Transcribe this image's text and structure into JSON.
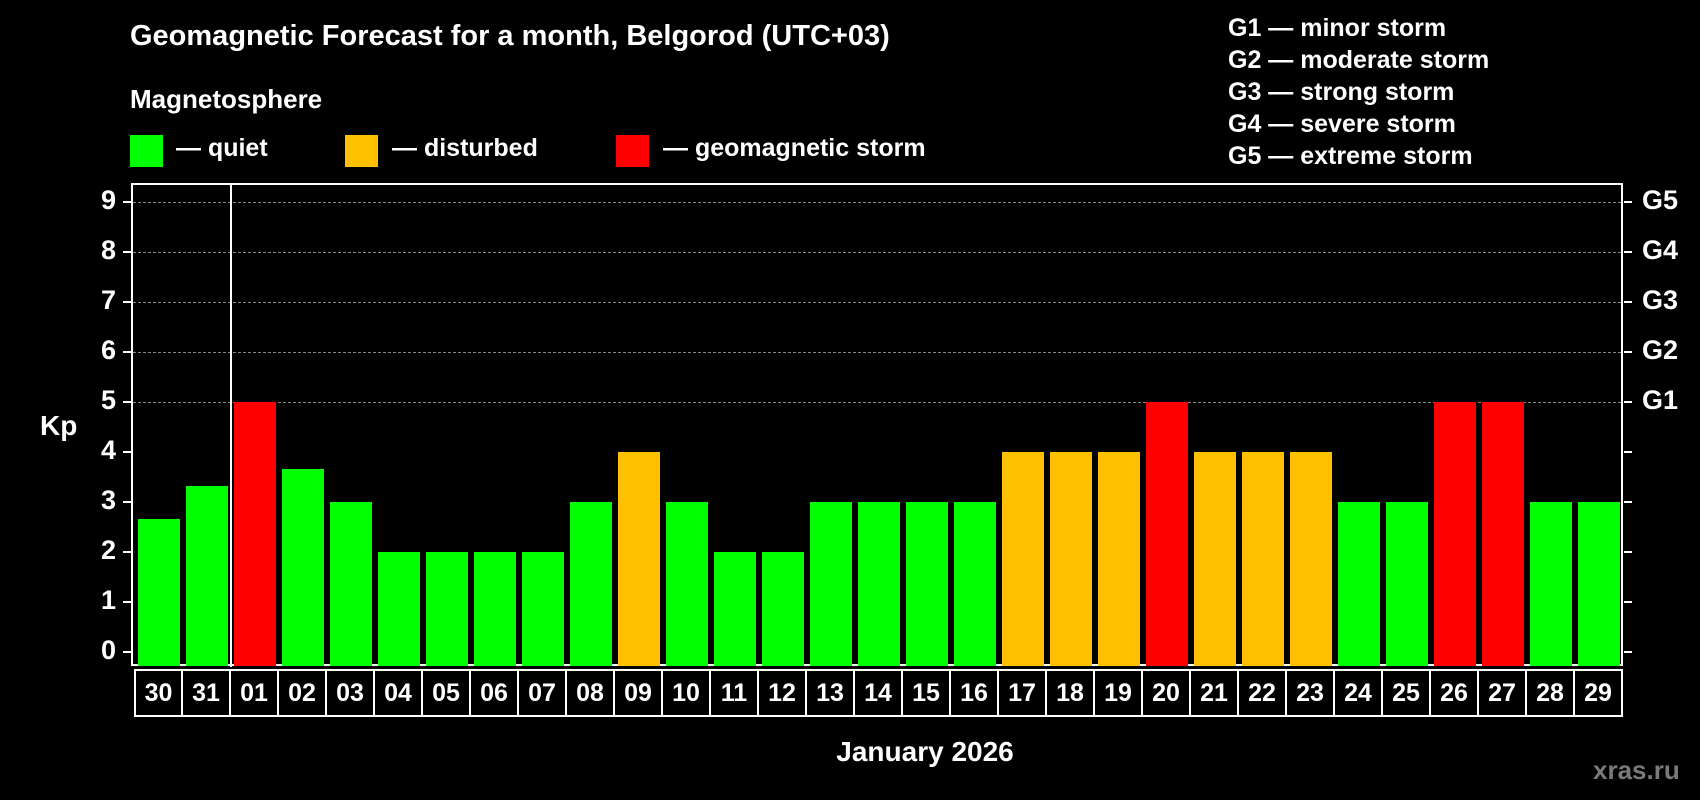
{
  "header": {
    "title": "Geomagnetic Forecast for a month, Belgorod (UTC+03)",
    "subtitle": "Magnetosphere"
  },
  "legend": {
    "items": [
      {
        "label": "— quiet",
        "color": "#00ff00"
      },
      {
        "label": "— disturbed",
        "color": "#ffc000"
      },
      {
        "label": "— geomagnetic storm",
        "color": "#ff0000"
      }
    ]
  },
  "storm_scale": [
    "G1 — minor storm",
    "G2 — moderate storm",
    "G3 — strong storm",
    "G4 — severe storm",
    "G5 — extreme storm"
  ],
  "watermark": "xras.ru",
  "chart_data": {
    "type": "bar",
    "title": "Geomagnetic Forecast for a month, Belgorod (UTC+03)",
    "xlabel": "January 2026",
    "ylabel": "Kp",
    "ylim": [
      0,
      9
    ],
    "yticks": [
      "0",
      "1",
      "2",
      "3",
      "4",
      "5",
      "6",
      "7",
      "8",
      "9"
    ],
    "right_axis_labels": [
      {
        "y": 5,
        "label": "G1"
      },
      {
        "y": 6,
        "label": "G2"
      },
      {
        "y": 7,
        "label": "G3"
      },
      {
        "y": 8,
        "label": "G4"
      },
      {
        "y": 9,
        "label": "G5"
      }
    ],
    "grid": "dashed horizontal at 5,6,7,8,9",
    "categories": [
      "30",
      "31",
      "01",
      "02",
      "03",
      "04",
      "05",
      "06",
      "07",
      "08",
      "09",
      "10",
      "11",
      "12",
      "13",
      "14",
      "15",
      "16",
      "17",
      "18",
      "19",
      "20",
      "21",
      "22",
      "23",
      "24",
      "25",
      "26",
      "27",
      "28",
      "29"
    ],
    "values": [
      2.67,
      3.33,
      5,
      3.67,
      3,
      2,
      2,
      2,
      2,
      3,
      4,
      3,
      2,
      2,
      3,
      3,
      3,
      3,
      4,
      4,
      4,
      5,
      4,
      4,
      4,
      3,
      3,
      5,
      5,
      3,
      3
    ],
    "status": [
      "quiet",
      "quiet",
      "storm",
      "quiet",
      "quiet",
      "quiet",
      "quiet",
      "quiet",
      "quiet",
      "quiet",
      "disturbed",
      "quiet",
      "quiet",
      "quiet",
      "quiet",
      "quiet",
      "quiet",
      "quiet",
      "disturbed",
      "disturbed",
      "disturbed",
      "storm",
      "disturbed",
      "disturbed",
      "disturbed",
      "quiet",
      "quiet",
      "storm",
      "storm",
      "quiet",
      "quiet"
    ],
    "colors": {
      "quiet": "#00ff00",
      "disturbed": "#ffc000",
      "storm": "#ff0000"
    },
    "month_separator_after": "31"
  }
}
